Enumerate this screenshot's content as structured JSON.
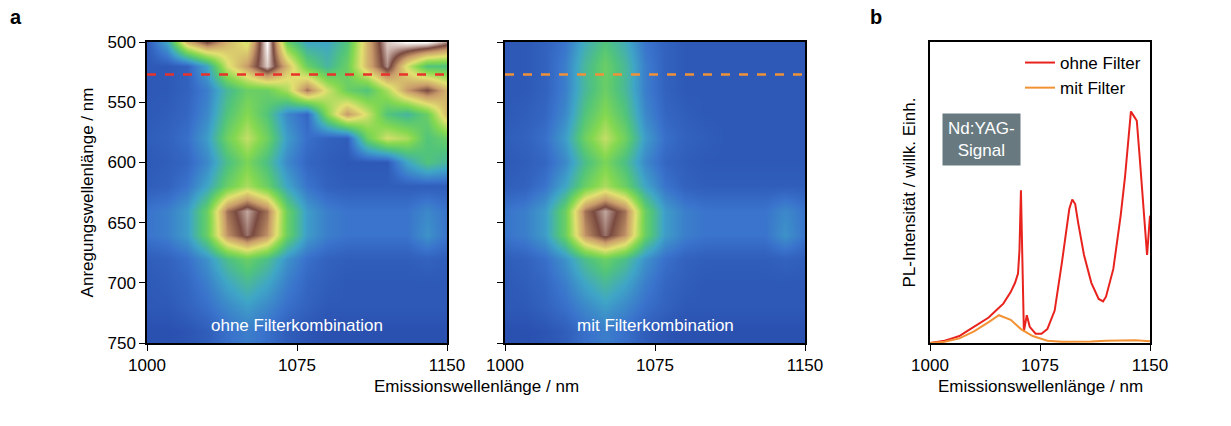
{
  "chart_data": [
    {
      "panel": "a",
      "type": "heatmap",
      "xlabel": "Emissionswellenlänge / nm",
      "ylabel": "Anregungswellenlänge / nm",
      "xlim": [
        1000,
        1150
      ],
      "xticks": [
        1000,
        1075,
        1150
      ],
      "ylim": [
        750,
        500
      ],
      "yticks": [
        500,
        550,
        600,
        650,
        700,
        750
      ],
      "zlim": [
        0,
        100
      ],
      "x": [
        1000,
        1010,
        1020,
        1030,
        1040,
        1050,
        1060,
        1070,
        1080,
        1090,
        1100,
        1110,
        1120,
        1130,
        1140,
        1150
      ],
      "y": [
        500,
        520,
        540,
        560,
        580,
        600,
        620,
        640,
        660,
        680,
        700,
        720,
        740
      ],
      "maps": [
        {
          "label": "ohne Filterkombination",
          "tick_labels": true,
          "excitation_line": {
            "y": 527,
            "color": "#e8322c",
            "line_style": "dash"
          },
          "z": [
            [
              14,
              30,
              70,
              85,
              70,
              60,
              100,
              45,
              30,
              30,
              40,
              70,
              95,
              100,
              100,
              90
            ],
            [
              14,
              14,
              16,
              30,
              60,
              75,
              95,
              70,
              45,
              35,
              45,
              70,
              90,
              60,
              40,
              40
            ],
            [
              14,
              14,
              16,
              22,
              36,
              45,
              45,
              55,
              80,
              60,
              45,
              40,
              55,
              75,
              85,
              70
            ],
            [
              14,
              15,
              17,
              24,
              40,
              50,
              40,
              24,
              17,
              50,
              75,
              60,
              40,
              35,
              45,
              70
            ],
            [
              15,
              16,
              19,
              28,
              46,
              58,
              46,
              28,
              19,
              16,
              15,
              45,
              60,
              55,
              40,
              45
            ],
            [
              14,
              15,
              17,
              24,
              38,
              48,
              38,
              24,
              17,
              15,
              14,
              14,
              14,
              30,
              40,
              35
            ],
            [
              15,
              16,
              20,
              30,
              45,
              55,
              45,
              30,
              20,
              16,
              15,
              15,
              15,
              15,
              15,
              15
            ],
            [
              20,
              22,
              28,
              45,
              80,
              92,
              80,
              45,
              28,
              22,
              20,
              20,
              20,
              20,
              24,
              20
            ],
            [
              20,
              22,
              28,
              45,
              76,
              88,
              76,
              45,
              28,
              22,
              20,
              20,
              20,
              20,
              26,
              20
            ],
            [
              15,
              16,
              19,
              26,
              38,
              45,
              38,
              26,
              19,
              16,
              15,
              15,
              15,
              15,
              16,
              15
            ],
            [
              14,
              15,
              17,
              22,
              30,
              36,
              30,
              22,
              17,
              15,
              14,
              14,
              14,
              14,
              14,
              14
            ],
            [
              14,
              14,
              16,
              19,
              24,
              28,
              24,
              19,
              16,
              14,
              14,
              14,
              14,
              14,
              14,
              14
            ],
            [
              12,
              12,
              13,
              15,
              19,
              22,
              19,
              15,
              13,
              12,
              12,
              12,
              12,
              12,
              12,
              12
            ]
          ]
        },
        {
          "label": "mit Filterkombination",
          "tick_labels": "x",
          "excitation_line": {
            "y": 527,
            "color": "#f0913a",
            "line_style": "dash"
          },
          "z": [
            [
              14,
              14,
              16,
              20,
              32,
              40,
              32,
              20,
              16,
              14,
              14,
              14,
              14,
              14,
              14,
              14
            ],
            [
              14,
              14,
              16,
              22,
              36,
              45,
              36,
              22,
              16,
              14,
              14,
              14,
              14,
              14,
              14,
              14
            ],
            [
              14,
              14,
              16,
              22,
              36,
              45,
              36,
              22,
              16,
              14,
              14,
              14,
              14,
              14,
              14,
              14
            ],
            [
              14,
              15,
              17,
              24,
              40,
              50,
              40,
              24,
              17,
              15,
              14,
              14,
              14,
              14,
              14,
              14
            ],
            [
              15,
              16,
              19,
              28,
              46,
              58,
              46,
              28,
              19,
              16,
              15,
              14,
              14,
              14,
              14,
              14
            ],
            [
              14,
              15,
              17,
              24,
              38,
              48,
              38,
              24,
              17,
              15,
              14,
              14,
              14,
              14,
              14,
              14
            ],
            [
              15,
              16,
              20,
              30,
              45,
              55,
              45,
              30,
              20,
              16,
              15,
              15,
              15,
              15,
              15,
              15
            ],
            [
              20,
              22,
              28,
              45,
              80,
              92,
              80,
              45,
              28,
              22,
              20,
              20,
              20,
              20,
              24,
              20
            ],
            [
              20,
              22,
              28,
              45,
              76,
              88,
              76,
              45,
              28,
              22,
              20,
              20,
              20,
              20,
              26,
              20
            ],
            [
              15,
              16,
              19,
              26,
              38,
              45,
              38,
              26,
              19,
              16,
              15,
              15,
              15,
              15,
              16,
              15
            ],
            [
              14,
              15,
              17,
              22,
              30,
              36,
              30,
              22,
              17,
              15,
              14,
              14,
              14,
              14,
              14,
              14
            ],
            [
              14,
              14,
              16,
              19,
              24,
              28,
              24,
              19,
              16,
              14,
              14,
              14,
              14,
              14,
              14,
              14
            ],
            [
              12,
              12,
              13,
              15,
              19,
              22,
              19,
              15,
              13,
              12,
              12,
              12,
              12,
              12,
              12,
              12
            ]
          ]
        }
      ]
    },
    {
      "panel": "b",
      "type": "line",
      "xlabel": "Emissionswellenlänge / nm",
      "ylabel": "PL-Intensität / willk. Einh.",
      "xlim": [
        1000,
        1150
      ],
      "xticks": [
        1000,
        1075,
        1150
      ],
      "ylim": [
        0,
        1.3
      ],
      "tick_labels": "x",
      "legend": "top right",
      "annotations": [
        {
          "text": "Nd:YAG-Signal",
          "x": 1035,
          "y": 0.88
        }
      ],
      "series": [
        {
          "name": "ohne Filter",
          "color": "#e8231e",
          "x": [
            1000,
            1005,
            1010,
            1015,
            1020,
            1025,
            1030,
            1035,
            1040,
            1045,
            1050,
            1055,
            1058,
            1060,
            1061,
            1062,
            1063,
            1064,
            1066,
            1068,
            1072,
            1076,
            1080,
            1085,
            1090,
            1093,
            1095,
            1097,
            1099,
            1101,
            1105,
            1110,
            1115,
            1118,
            1120,
            1125,
            1130,
            1133,
            1135,
            1137,
            1139,
            1141,
            1143,
            1145,
            1147,
            1148,
            1150
          ],
          "values": [
            0.0,
            0.005,
            0.01,
            0.02,
            0.03,
            0.05,
            0.07,
            0.09,
            0.11,
            0.14,
            0.17,
            0.22,
            0.26,
            0.3,
            0.4,
            0.66,
            0.3,
            0.05,
            0.12,
            0.07,
            0.04,
            0.04,
            0.06,
            0.14,
            0.35,
            0.5,
            0.58,
            0.62,
            0.6,
            0.52,
            0.38,
            0.26,
            0.19,
            0.18,
            0.2,
            0.32,
            0.55,
            0.72,
            0.85,
            1.0,
            0.98,
            0.96,
            0.8,
            0.62,
            0.45,
            0.38,
            0.55
          ]
        },
        {
          "name": "mit Filter",
          "color": "#f39234",
          "x": [
            1000,
            1010,
            1020,
            1030,
            1040,
            1047,
            1055,
            1062,
            1070,
            1080,
            1090,
            1100,
            1110,
            1120,
            1130,
            1140,
            1150
          ],
          "values": [
            0.0,
            0.005,
            0.02,
            0.05,
            0.09,
            0.12,
            0.1,
            0.06,
            0.03,
            0.01,
            0.005,
            0.005,
            0.007,
            0.01,
            0.012,
            0.012,
            0.008
          ]
        }
      ]
    }
  ]
}
